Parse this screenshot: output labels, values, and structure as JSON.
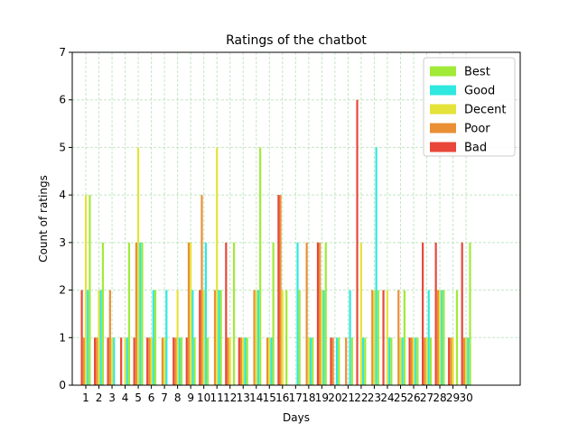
{
  "chart_data": {
    "type": "bar",
    "title": "Ratings of the chatbot",
    "xlabel": "Days",
    "ylabel": "Count of ratings",
    "ylim": [
      0,
      7
    ],
    "yticks": [
      0,
      1,
      2,
      3,
      4,
      5,
      6,
      7
    ],
    "grid": true,
    "legend_position": "top-right",
    "categories": [
      "1",
      "2",
      "3",
      "4",
      "5",
      "6",
      "7",
      "8",
      "9",
      "10",
      "11",
      "12",
      "13",
      "14",
      "15",
      "16",
      "17",
      "18",
      "19",
      "20",
      "21",
      "22",
      "23",
      "24",
      "25",
      "26",
      "27",
      "28",
      "29",
      "30"
    ],
    "series": [
      {
        "name": "Bad",
        "color": "#e8473a",
        "values": [
          2,
          1,
          1,
          1,
          1,
          1,
          0,
          1,
          1,
          2,
          0,
          3,
          1,
          0,
          0,
          4,
          0,
          0,
          3,
          1,
          0,
          6,
          0,
          2,
          0,
          1,
          3,
          3,
          1,
          3
        ]
      },
      {
        "name": "Poor",
        "color": "#ea8f36",
        "values": [
          1,
          1,
          2,
          0,
          3,
          1,
          1,
          1,
          3,
          4,
          2,
          1,
          1,
          2,
          1,
          4,
          0,
          3,
          3,
          1,
          1,
          0,
          2,
          0,
          2,
          1,
          1,
          2,
          1,
          1
        ]
      },
      {
        "name": "Decent",
        "color": "#e5e339",
        "values": [
          4,
          2,
          1,
          1,
          5,
          1,
          1,
          2,
          3,
          2,
          5,
          1,
          1,
          2,
          1,
          2,
          0,
          1,
          2,
          0,
          0,
          3,
          2,
          2,
          1,
          1,
          1,
          2,
          1,
          1
        ]
      },
      {
        "name": "Good",
        "color": "#2fe8e0",
        "values": [
          2,
          2,
          1,
          1,
          3,
          2,
          2,
          1,
          2,
          3,
          2,
          0,
          1,
          2,
          1,
          0,
          3,
          1,
          2,
          1,
          2,
          1,
          5,
          1,
          1,
          1,
          2,
          2,
          0,
          1
        ]
      },
      {
        "name": "Best",
        "color": "#a1ea38",
        "values": [
          4,
          3,
          0,
          3,
          3,
          2,
          0,
          1,
          1,
          1,
          2,
          3,
          1,
          5,
          3,
          2,
          2,
          1,
          3,
          1,
          1,
          1,
          2,
          1,
          2,
          1,
          1,
          2,
          2,
          3
        ]
      }
    ]
  }
}
